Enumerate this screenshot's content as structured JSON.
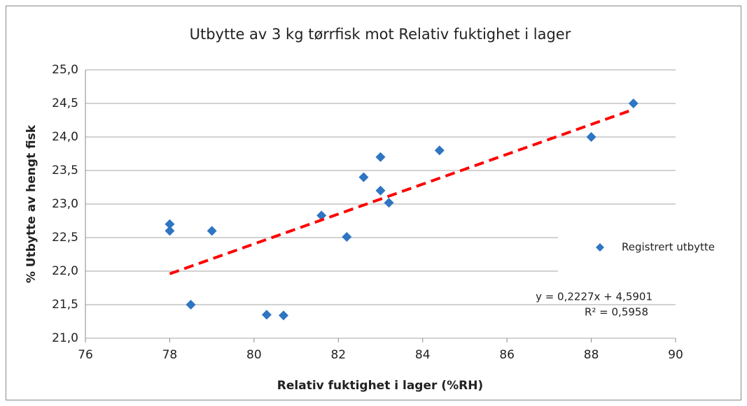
{
  "chart_data": {
    "type": "scatter",
    "title": "Utbytte av 3 kg tørrfisk mot Relativ fuktighet i lager",
    "x_label": "Relativ fuktighet i lager (%RH)",
    "y_label": "% Utbytte av hengt fisk",
    "series": [
      {
        "name": "Registrert utbytte",
        "color": "#2e75c2",
        "x": [
          78,
          78,
          79,
          78.5,
          80.3,
          80.7,
          81.6,
          82.2,
          82.6,
          83,
          83,
          83.2,
          84.4,
          88,
          89
        ],
        "y": [
          22.7,
          22.6,
          22.6,
          21.5,
          21.35,
          21.34,
          22.83,
          22.51,
          23.4,
          23.7,
          23.2,
          23.02,
          23.8,
          24.0,
          24.5
        ]
      }
    ],
    "trendline": {
      "color": "#ff0000",
      "x": [
        78,
        89
      ],
      "y": [
        21.96,
        24.41
      ],
      "annotation": [
        "y = 0,2227x + 4,5901",
        "R² = 0,5958"
      ]
    },
    "xlim": [
      76,
      90
    ],
    "xticks": [
      76,
      78,
      80,
      82,
      84,
      86,
      88,
      90
    ],
    "ylim": [
      21,
      25
    ],
    "yticks": [
      {
        "value": 21,
        "label": "21,0"
      },
      {
        "value": 21.5,
        "label": "21,5"
      },
      {
        "value": 22,
        "label": "22,0"
      },
      {
        "value": 22.5,
        "label": "22,5"
      },
      {
        "value": 23,
        "label": "23,0"
      },
      {
        "value": 23.5,
        "label": "23,5"
      },
      {
        "value": 24,
        "label": "24,0"
      },
      {
        "value": 24.5,
        "label": "24,5"
      },
      {
        "value": 25,
        "label": "25,0"
      }
    ],
    "grid": true,
    "legend": "right"
  }
}
